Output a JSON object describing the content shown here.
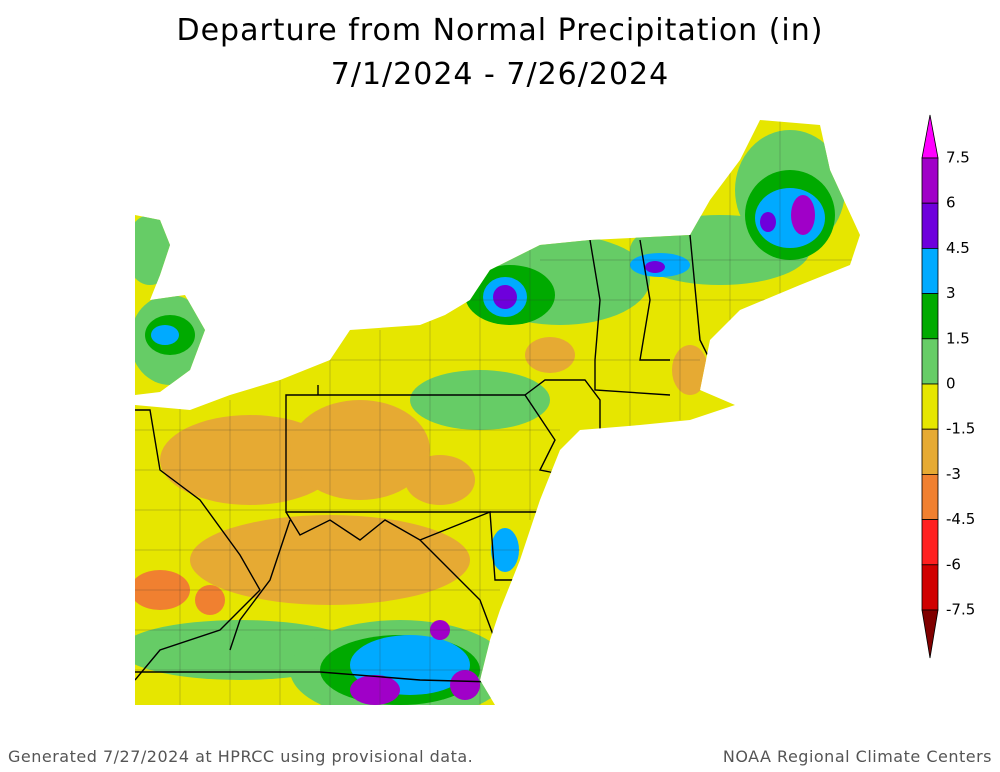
{
  "title": [
    "Departure from Normal Precipitation (in)",
    "7/1/2024 - 7/26/2024"
  ],
  "legend": {
    "labels": [
      "7.5",
      "6",
      "4.5",
      "3",
      "1.5",
      "0",
      "-1.5",
      "-3",
      "-4.5",
      "-6",
      "-7.5"
    ],
    "colors": [
      "#ff00ff",
      "#a000c8",
      "#6e00dc",
      "#00aaff",
      "#00aa00",
      "#66cc66",
      "#e6e600",
      "#e6aa33",
      "#f08030",
      "#ff2020",
      "#d00000",
      "#800000"
    ]
  },
  "footer": {
    "left": "Generated 7/27/2024 at HPRCC using provisional data.",
    "right": "NOAA Regional Climate Centers"
  }
}
